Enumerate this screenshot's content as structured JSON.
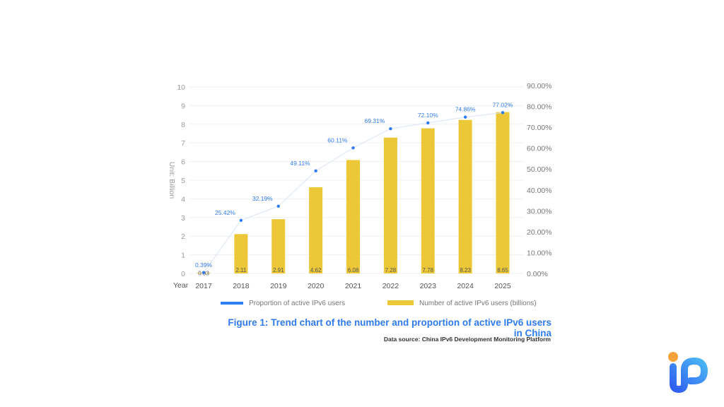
{
  "chart_data": {
    "type": "bar+line",
    "title": "Figure 1: Trend chart of the number and proportion of active IPv6 users in China",
    "source": "Data source: China IPv6 Development Monitoring Platform",
    "xlabel": "Year",
    "ylabel": "Unit: Billion",
    "categories": [
      "2017",
      "2018",
      "2019",
      "2020",
      "2021",
      "2022",
      "2023",
      "2024",
      "2025"
    ],
    "ylim": [
      0,
      10
    ],
    "yticks": [
      "0",
      "1",
      "2",
      "3",
      "4",
      "5",
      "6",
      "7",
      "8",
      "9",
      "10"
    ],
    "y2lim": [
      0,
      90
    ],
    "y2ticks": [
      "0.00%",
      "10.00%",
      "20.00%",
      "30.00%",
      "40.00%",
      "50.00%",
      "60.00%",
      "70.00%",
      "80.00%",
      "90.00%"
    ],
    "grid": true,
    "legend_placement": "bottom",
    "series": [
      {
        "name": "Number of active IPv6 users (billions)",
        "type": "bar",
        "axis": "left",
        "color": "#ecc838",
        "values": [
          0.03,
          2.11,
          2.91,
          4.62,
          6.08,
          7.28,
          7.78,
          8.23,
          8.65
        ],
        "labels": [
          "0.03",
          "2.11",
          "2.91",
          "4.62",
          "6.08",
          "7.28",
          "7.78",
          "8.23",
          "8.65"
        ]
      },
      {
        "name": "Proportion of active IPv6 users",
        "type": "line",
        "axis": "right",
        "color": "#2f7bf0",
        "values": [
          0.39,
          25.42,
          32.19,
          49.11,
          60.11,
          69.31,
          72.1,
          74.86,
          77.02
        ],
        "labels": [
          "0.39%",
          "25.42%",
          "32.19%",
          "49.11%",
          "60.11%",
          "69.31%",
          "72.10%",
          "74.86%",
          "77.02%"
        ]
      }
    ]
  },
  "logo": {
    "text": "iP",
    "colors": [
      "#f5a23a",
      "#2f6cf0",
      "#4ab0f5"
    ]
  }
}
